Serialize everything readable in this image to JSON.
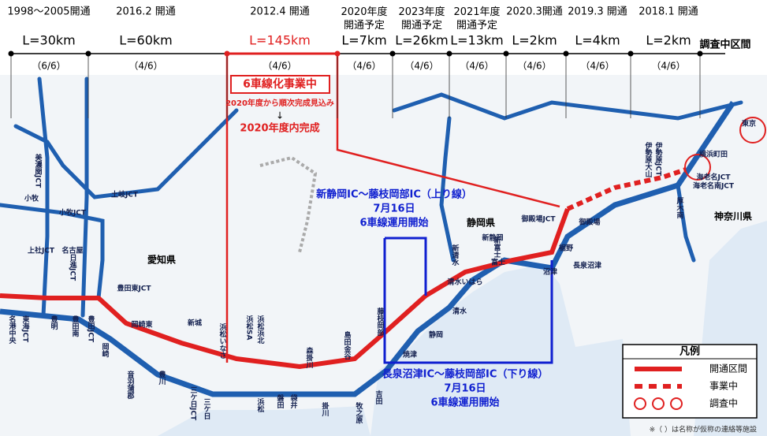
{
  "header": {
    "segments": [
      {
        "opened": "1998～2005開通",
        "length": "L=30km",
        "lanes": "（6/6）"
      },
      {
        "opened": "2016.2 開通",
        "length": "L=60km",
        "lanes": "（4/6）"
      },
      {
        "opened": "2012.4 開通",
        "length": "L=145km",
        "lanes": "（4/6）"
      },
      {
        "opened": "2020年度\n開通予定",
        "length": "L=7km",
        "lanes": "（4/6）"
      },
      {
        "opened": "2023年度\n開通予定",
        "length": "L=26km",
        "lanes": "（4/6）"
      },
      {
        "opened": "2021年度\n開通予定",
        "length": "L=13km",
        "lanes": "（4/6）"
      },
      {
        "opened": "2020.3開通",
        "length": "L=2km",
        "lanes": "（4/6）"
      },
      {
        "opened": "2019.3 開通",
        "length": "L=4km",
        "lanes": "（4/6）"
      },
      {
        "opened": "2018.1 開通",
        "length": "L=2km",
        "lanes": "（4/6）"
      }
    ],
    "survey": "調査中区間"
  },
  "callouts": {
    "widening": {
      "title": "6車線化事業中",
      "note": "2020年度から順次完成見込み",
      "arrow": "↓",
      "result": "2020年度内完成"
    },
    "upbound": {
      "title": "新静岡IC～藤枝岡部IC（上り線）",
      "date": "7月16日",
      "status": "6車線運用開始"
    },
    "downbound": {
      "title": "長泉沼津IC～藤枝岡部IC（下り線）",
      "date": "7月16日",
      "status": "6車線運用開始"
    }
  },
  "legend": {
    "title": "凡例",
    "items": [
      "開通区間",
      "事業中",
      "調査中"
    ]
  },
  "footnote": "※（ ）は名称が仮称の連絡等施設",
  "map_labels": [
    "愛知県",
    "静岡県",
    "神奈川県",
    "美濃関JCT",
    "小牧",
    "小牧JCT",
    "土岐JCT",
    "名古屋",
    "上社JCT",
    "日進JCT",
    "豊田東JCT",
    "名港中央",
    "東海JCT",
    "豊明",
    "豊田南",
    "豊田JCT",
    "岡崎",
    "岡崎東",
    "新城",
    "音羽蒲郡",
    "豊川",
    "三ケ日JCT",
    "浜松いなさ",
    "浜松浜北",
    "浜松SA",
    "森掛川",
    "島田金谷",
    "藤枝岡部",
    "新静岡",
    "清水いはら",
    "新清水",
    "新富士",
    "長泉沼津",
    "御殿場JCT",
    "御殿場",
    "厚木南",
    "海老名JCT",
    "海老名南JCT",
    "横浜町田",
    "東京",
    "清水",
    "静岡",
    "焼津",
    "吉田",
    "牧之原",
    "掛川",
    "袋井",
    "磐田",
    "浜松",
    "三ケ日",
    "富士",
    "沼津",
    "裾野",
    "伊勢原JCT",
    "伊勢原大山"
  ]
}
